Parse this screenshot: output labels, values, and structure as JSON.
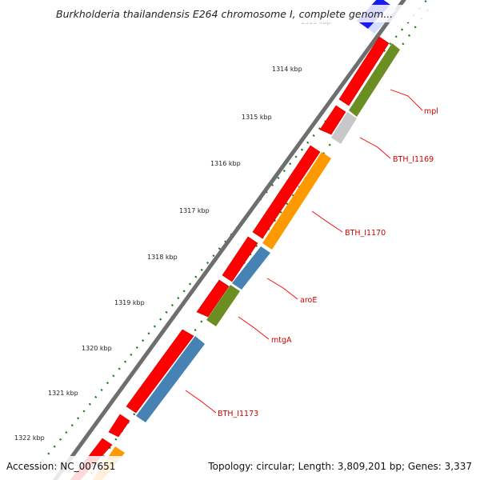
{
  "title": "Burkholderia thailandensis E264 chromosome I, complete genom...",
  "accession": "Accession: NC_007651",
  "topology": "Topology: circular; Length: 3,809,201 bp; Genes: 3,337",
  "ruler": {
    "faded_label": "1313 kbp",
    "labels": [
      "1314 kbp",
      "1315 kbp",
      "1316 kbp",
      "1317 kbp",
      "1318 kbp",
      "1319 kbp",
      "1320 kbp",
      "1321 kbp",
      "1322 kbp"
    ]
  },
  "gene_labels": [
    "mpl",
    "BTH_I1169",
    "BTH_I1170",
    "aroE",
    "mtgA",
    "BTH_I1173"
  ],
  "colors": {
    "backbone": "#8c8c8c",
    "strand_gene": "#ff0000",
    "tick": "#1a7a1a",
    "label": "#cc0000",
    "leader": "#ff0000",
    "olive": "#6b8e23",
    "grey": "#c8c8c8",
    "orange": "#ff9900",
    "steel": "#4682b4",
    "blue": "#0000ee"
  }
}
